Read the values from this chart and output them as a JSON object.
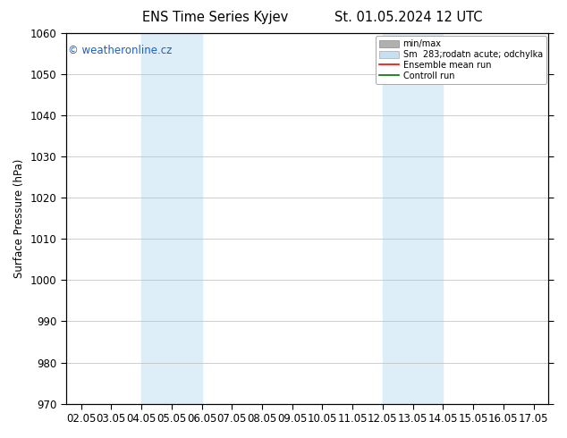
{
  "title_left": "ENS Time Series Kyjev",
  "title_right": "St. 01.05.2024 12 UTC",
  "ylabel": "Surface Pressure (hPa)",
  "ylim": [
    970,
    1060
  ],
  "yticks": [
    970,
    980,
    990,
    1000,
    1010,
    1020,
    1030,
    1040,
    1050,
    1060
  ],
  "x_values": [
    0,
    1,
    2,
    3,
    4,
    5,
    6,
    7,
    8,
    9,
    10,
    11,
    12,
    13,
    14,
    15
  ],
  "xlim": [
    -0.5,
    15.5
  ],
  "xtick_labels": [
    "02.05",
    "03.05",
    "04.05",
    "05.05",
    "06.05",
    "07.05",
    "08.05",
    "09.05",
    "10.05",
    "11.05",
    "12.05",
    "13.05",
    "14.05",
    "15.05",
    "16.05",
    "17.05"
  ],
  "shaded_bands": [
    {
      "x_start": 2,
      "x_end": 4,
      "color": "#ddeef8"
    },
    {
      "x_start": 10,
      "x_end": 12,
      "color": "#ddeef8"
    }
  ],
  "watermark_text": "© weatheronline.cz",
  "watermark_color": "#1a5fc8",
  "bg_color": "#ffffff",
  "grid_color": "#bbbbbb",
  "axis_color": "#000000",
  "tick_color": "#000000",
  "font_size": 8.5,
  "title_font_size": 10.5,
  "legend_minmax_color": "#b0b0b0",
  "legend_sm_color": "#c8dff0",
  "legend_ens_color": "#ff0000",
  "legend_ctrl_color": "#007000"
}
